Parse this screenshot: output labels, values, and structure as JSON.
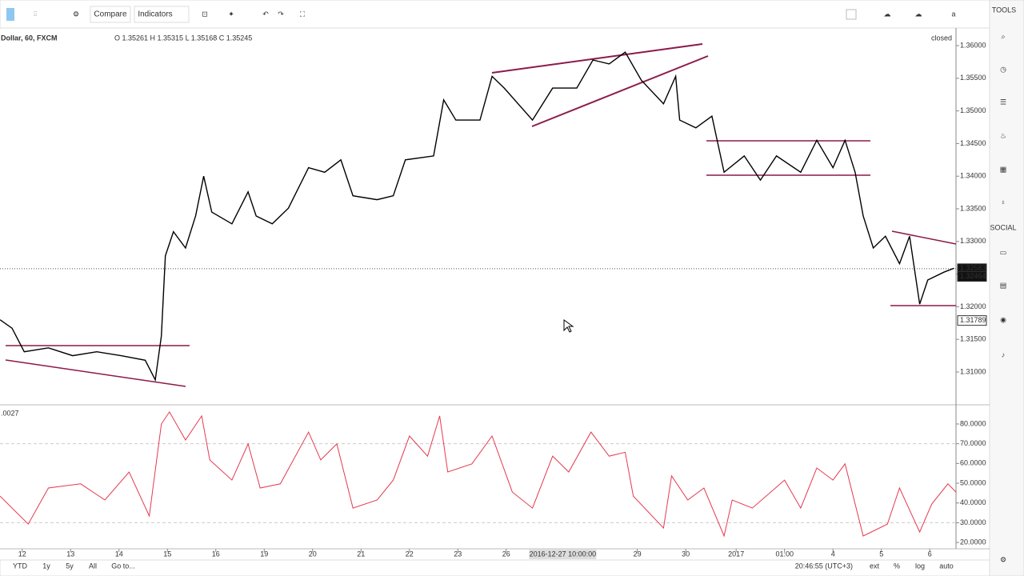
{
  "toolbar": {
    "compare": "Compare",
    "indicators": "Indicators",
    "user": "a"
  },
  "sidebar": {
    "tools": "TOOLS",
    "social": "SOCIAL"
  },
  "bottom_bar": {
    "ranges": [
      "YTD",
      "1y",
      "5y",
      "All",
      "Go to..."
    ],
    "clock": "20:46:55 (UTC+3)",
    "options": [
      "ext",
      "%",
      "log",
      "auto"
    ]
  },
  "chart_data": [
    {
      "type": "line",
      "title": "Dollar, 60, FXCM",
      "ohlc": "O 1.35261 H 1.35315 L 1.35168 C 1.35245",
      "status": "closed",
      "x": [
        -11,
        -5,
        1,
        13,
        25,
        37,
        49,
        61,
        66,
        69,
        71,
        75,
        81,
        86,
        90,
        94,
        104,
        112,
        116,
        124,
        132,
        142,
        150,
        158,
        164,
        176,
        184,
        190,
        204,
        209,
        215,
        227,
        233,
        239,
        253,
        263,
        275,
        283,
        291,
        299,
        307,
        318,
        324,
        326,
        334,
        342,
        348,
        358,
        366,
        374,
        386,
        394,
        402,
        408,
        413,
        417,
        422,
        428,
        435,
        440,
        445,
        449,
        457,
        462
      ],
      "series": [
        {
          "color": "#000000",
          "values": [
            1.318,
            1.3167,
            1.3131,
            1.3137,
            1.3125,
            1.3131,
            1.3125,
            1.3118,
            1.3088,
            1.3155,
            1.3278,
            1.3315,
            1.329,
            1.3339,
            1.34,
            1.3345,
            1.3327,
            1.3376,
            1.3339,
            1.3327,
            1.3351,
            1.3413,
            1.3406,
            1.3425,
            1.337,
            1.3364,
            1.337,
            1.3425,
            1.3431,
            1.3517,
            1.3486,
            1.3486,
            1.3553,
            1.3535,
            1.3486,
            1.3535,
            1.3535,
            1.3578,
            1.3572,
            1.359,
            1.3547,
            1.3511,
            1.3553,
            1.3486,
            1.3474,
            1.3492,
            1.3406,
            1.3431,
            1.3394,
            1.3431,
            1.3406,
            1.3455,
            1.3413,
            1.3455,
            1.3406,
            1.3339,
            1.329,
            1.3308,
            1.3266,
            1.3308,
            1.3204,
            1.3241,
            1.3253,
            1.3259
          ]
        }
      ],
      "xlim": [
        -11,
        463
      ],
      "xticks": [
        {
          "value": 0,
          "label": "12"
        },
        {
          "value": 24,
          "label": "13"
        },
        {
          "value": 48,
          "label": "14"
        },
        {
          "value": 72,
          "label": "15"
        },
        {
          "value": 96,
          "label": "16"
        },
        {
          "value": 120,
          "label": "19"
        },
        {
          "value": 144,
          "label": "20"
        },
        {
          "value": 168,
          "label": "21"
        },
        {
          "value": 192,
          "label": "22"
        },
        {
          "value": 216,
          "label": "23"
        },
        {
          "value": 240,
          "label": "26"
        },
        {
          "value": 305,
          "label": "29"
        },
        {
          "value": 329,
          "label": "30"
        },
        {
          "value": 354,
          "label": "2017"
        },
        {
          "value": 378,
          "label": "01:00"
        },
        {
          "value": 402,
          "label": "4"
        },
        {
          "value": 426,
          "label": "5"
        },
        {
          "value": 450,
          "label": "6"
        }
      ],
      "crosshair": {
        "x": 268,
        "label": "2016-12-27 10:00:00"
      },
      "ylim": [
        1.3051,
        1.3627
      ],
      "yticks": [
        {
          "value": 1.31,
          "label": "1.31000"
        },
        {
          "value": 1.315,
          "label": "1.31500"
        },
        {
          "value": 1.32,
          "label": "1.32000"
        },
        {
          "value": 1.325,
          "label": "1.32500"
        },
        {
          "value": 1.33,
          "label": "1.33000"
        },
        {
          "value": 1.335,
          "label": "1.33500"
        },
        {
          "value": 1.34,
          "label": "1.34000"
        },
        {
          "value": 1.345,
          "label": "1.34500"
        },
        {
          "value": 1.35,
          "label": "1.35000"
        },
        {
          "value": 1.355,
          "label": "1.35500"
        },
        {
          "value": 1.36,
          "label": "1.36000"
        }
      ],
      "annotations": [
        {
          "value": 1.32583,
          "label": "1.32583"
        },
        {
          "value": 1.32464,
          "label": "1.32464"
        },
        {
          "value": 1.31789,
          "label": "1.31789"
        }
      ]
    },
    {
      "type": "line",
      "value_text": ".0027",
      "x": [
        -11,
        3,
        13,
        29,
        41,
        53,
        63,
        69,
        73,
        81,
        89,
        93,
        104,
        112,
        118,
        128,
        142,
        148,
        156,
        164,
        176,
        184,
        192,
        201,
        207,
        211,
        223,
        233,
        243,
        253,
        263,
        271,
        282,
        291,
        299,
        303,
        318,
        322,
        330,
        338,
        348,
        352,
        362,
        378,
        386,
        394,
        402,
        408,
        417,
        429,
        435,
        445,
        451,
        459,
        463
      ],
      "series": [
        {
          "color": "#e53950",
          "values": [
            43.5,
            29.3,
            47.6,
            49.7,
            41.5,
            55.7,
            33.4,
            80,
            86.1,
            71.9,
            84.1,
            61.8,
            51.6,
            69.9,
            47.6,
            49.7,
            75.9,
            61.8,
            69.9,
            37.4,
            41.5,
            51.6,
            73.9,
            63.7,
            84.1,
            55.7,
            59.8,
            73.9,
            45.5,
            37.4,
            63.7,
            55.7,
            75.9,
            63.7,
            65.7,
            43.5,
            27.3,
            53.7,
            41.5,
            47.6,
            23.3,
            41.5,
            37.4,
            51.6,
            37.4,
            57.7,
            51.6,
            59.8,
            23.3,
            29.3,
            47.6,
            25.3,
            39.5,
            49.7,
            45.5
          ]
        }
      ],
      "xlim": [
        -11,
        463
      ],
      "ylim": [
        16.8,
        88.9
      ],
      "yticks": [
        {
          "value": 20,
          "label": "20.0000"
        },
        {
          "value": 30,
          "label": "30.0000"
        },
        {
          "value": 40,
          "label": "40.0000"
        },
        {
          "value": 50,
          "label": "50.0000"
        },
        {
          "value": 60,
          "label": "60.0000"
        },
        {
          "value": 70,
          "label": "70.0000"
        },
        {
          "value": 80,
          "label": "80.0000"
        }
      ],
      "bands": [
        30,
        70
      ]
    }
  ]
}
